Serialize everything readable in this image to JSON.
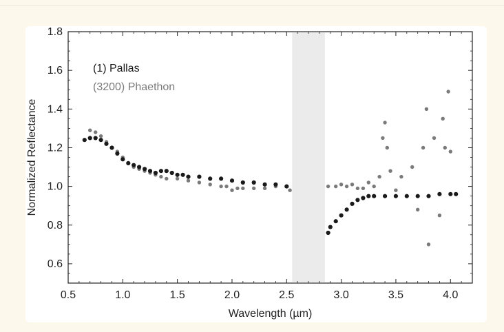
{
  "chart_data": {
    "type": "scatter",
    "title": "",
    "xlabel": "Wavelength (µm)",
    "ylabel": "Normalized Reflectance",
    "xlim": [
      0.5,
      4.2
    ],
    "ylim": [
      0.5,
      1.8
    ],
    "xticks": [
      "0.5",
      "1.0",
      "1.5",
      "2.0",
      "2.5",
      "3.0",
      "3.5",
      "4.0"
    ],
    "yticks": [
      "0.6",
      "0.8",
      "1.0",
      "1.2",
      "1.4",
      "1.6",
      "1.8"
    ],
    "grid": false,
    "legend_position": "top-left",
    "excluded_band": [
      2.55,
      2.85
    ],
    "series": [
      {
        "name": "(1) Pallas",
        "color": "#1a1a1a",
        "points": [
          [
            0.65,
            1.24
          ],
          [
            0.7,
            1.25
          ],
          [
            0.75,
            1.25
          ],
          [
            0.8,
            1.24
          ],
          [
            0.85,
            1.22
          ],
          [
            0.9,
            1.2
          ],
          [
            0.95,
            1.17
          ],
          [
            1.0,
            1.14
          ],
          [
            1.05,
            1.12
          ],
          [
            1.1,
            1.11
          ],
          [
            1.15,
            1.1
          ],
          [
            1.2,
            1.09
          ],
          [
            1.25,
            1.08
          ],
          [
            1.3,
            1.07
          ],
          [
            1.35,
            1.08
          ],
          [
            1.4,
            1.08
          ],
          [
            1.45,
            1.07
          ],
          [
            1.5,
            1.06
          ],
          [
            1.55,
            1.06
          ],
          [
            1.6,
            1.05
          ],
          [
            1.7,
            1.05
          ],
          [
            1.8,
            1.04
          ],
          [
            1.9,
            1.04
          ],
          [
            2.0,
            1.03
          ],
          [
            2.1,
            1.02
          ],
          [
            2.2,
            1.02
          ],
          [
            2.3,
            1.01
          ],
          [
            2.4,
            1.01
          ],
          [
            2.5,
            1.0
          ],
          [
            2.88,
            0.76
          ],
          [
            2.9,
            0.79
          ],
          [
            2.95,
            0.82
          ],
          [
            3.0,
            0.85
          ],
          [
            3.05,
            0.88
          ],
          [
            3.1,
            0.91
          ],
          [
            3.15,
            0.93
          ],
          [
            3.2,
            0.94
          ],
          [
            3.25,
            0.95
          ],
          [
            3.3,
            0.95
          ],
          [
            3.4,
            0.95
          ],
          [
            3.5,
            0.95
          ],
          [
            3.6,
            0.95
          ],
          [
            3.7,
            0.95
          ],
          [
            3.8,
            0.95
          ],
          [
            3.9,
            0.96
          ],
          [
            4.0,
            0.96
          ],
          [
            4.05,
            0.96
          ]
        ]
      },
      {
        "name": "(3200) Phaethon",
        "color": "#7a7a7a",
        "points": [
          [
            0.7,
            1.29
          ],
          [
            0.75,
            1.28
          ],
          [
            0.8,
            1.26
          ],
          [
            0.85,
            1.23
          ],
          [
            0.9,
            1.2
          ],
          [
            0.95,
            1.18
          ],
          [
            1.0,
            1.15
          ],
          [
            1.05,
            1.12
          ],
          [
            1.1,
            1.1
          ],
          [
            1.15,
            1.09
          ],
          [
            1.2,
            1.08
          ],
          [
            1.25,
            1.07
          ],
          [
            1.3,
            1.06
          ],
          [
            1.35,
            1.05
          ],
          [
            1.4,
            1.04
          ],
          [
            1.5,
            1.04
          ],
          [
            1.6,
            1.03
          ],
          [
            1.7,
            1.02
          ],
          [
            1.8,
            1.01
          ],
          [
            1.9,
            1.0
          ],
          [
            1.95,
            1.0
          ],
          [
            2.0,
            0.98
          ],
          [
            2.05,
            0.99
          ],
          [
            2.1,
            0.99
          ],
          [
            2.2,
            0.99
          ],
          [
            2.3,
            0.99
          ],
          [
            2.4,
            1.0
          ],
          [
            2.5,
            1.0
          ],
          [
            2.53,
            0.98
          ],
          [
            2.88,
            1.0
          ],
          [
            2.95,
            1.0
          ],
          [
            3.0,
            1.01
          ],
          [
            3.05,
            1.0
          ],
          [
            3.1,
            1.01
          ],
          [
            3.15,
            0.99
          ],
          [
            3.2,
            0.99
          ],
          [
            3.25,
            1.02
          ],
          [
            3.3,
            1.0
          ],
          [
            3.35,
            1.05
          ],
          [
            3.38,
            1.25
          ],
          [
            3.4,
            1.33
          ],
          [
            3.42,
            1.2
          ],
          [
            3.45,
            1.08
          ],
          [
            3.5,
            0.98
          ],
          [
            3.55,
            1.05
          ],
          [
            3.6,
            0.95
          ],
          [
            3.65,
            1.1
          ],
          [
            3.7,
            0.88
          ],
          [
            3.75,
            1.2
          ],
          [
            3.78,
            1.4
          ],
          [
            3.8,
            0.7
          ],
          [
            3.85,
            1.25
          ],
          [
            3.9,
            0.85
          ],
          [
            3.93,
            1.35
          ],
          [
            3.95,
            1.2
          ],
          [
            3.98,
            1.49
          ],
          [
            4.0,
            1.18
          ]
        ]
      }
    ]
  }
}
